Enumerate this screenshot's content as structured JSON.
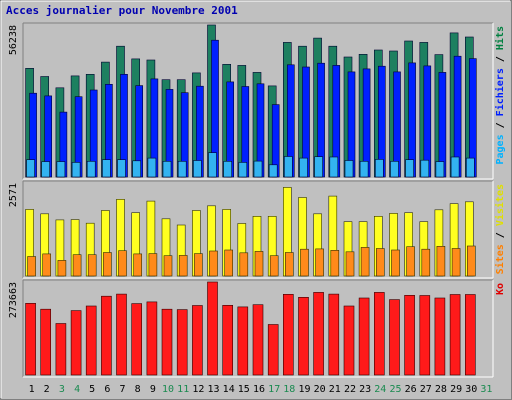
{
  "chart_data": {
    "type": "bar",
    "title": "Acces journalier pour Novembre 2001",
    "categories": [
      "1",
      "2",
      "3",
      "4",
      "5",
      "6",
      "7",
      "8",
      "9",
      "10",
      "11",
      "12",
      "13",
      "14",
      "15",
      "16",
      "17",
      "18",
      "19",
      "20",
      "21",
      "22",
      "23",
      "24",
      "25",
      "26",
      "27",
      "28",
      "29",
      "30",
      "31"
    ],
    "weekend_days": [
      "3",
      "4",
      "10",
      "11",
      "17",
      "18",
      "24",
      "25",
      "31"
    ],
    "panels": [
      {
        "id": "top",
        "ymax_label": "56238",
        "ymax": 56238,
        "right_label_parts": [
          {
            "text": "Pages",
            "color": "#00b2ff"
          },
          {
            "text": " / ",
            "color": "#000000"
          },
          {
            "text": "Fichiers",
            "color": "#0020ff"
          },
          {
            "text": " / ",
            "color": "#000000"
          },
          {
            "text": "Hits",
            "color": "#008040"
          }
        ],
        "series": [
          {
            "name": "Hits",
            "color": "#1d8060",
            "values": [
              40200,
              37200,
              33000,
              37400,
              38000,
              42500,
              48400,
              43700,
              43300,
              36000,
              36000,
              38500,
              56238,
              41700,
              41300,
              38700,
              33700,
              49800,
              48400,
              51400,
              48400,
              44400,
              45400,
              47000,
              46600,
              50300,
              49800,
              45300,
              53300,
              51800
            ]
          },
          {
            "name": "Fichiers",
            "color": "#0020ff",
            "values": [
              31000,
              30000,
              24000,
              29700,
              32200,
              34300,
              38000,
              33800,
              36300,
              32400,
              31200,
              33600,
              50600,
              35200,
              33500,
              34500,
              26800,
              41500,
              40700,
              42100,
              41300,
              38900,
              40000,
              41000,
              38900,
              42200,
              41100,
              38700,
              44700,
              43800
            ]
          },
          {
            "name": "Pages",
            "color": "#33b3f0",
            "values": [
              6400,
              5700,
              5700,
              5400,
              5800,
              6400,
              6400,
              6000,
              7000,
              5800,
              5800,
              6100,
              9000,
              5800,
              5400,
              5900,
              4500,
              7600,
              7000,
              7500,
              7400,
              6100,
              5800,
              6500,
              5800,
              6400,
              6200,
              5700,
              7400,
              7000
            ]
          }
        ]
      },
      {
        "id": "middle",
        "ymax_label": "2571",
        "ymax": 2571,
        "right_label_parts": [
          {
            "text": "Sites",
            "color": "#ff8000"
          },
          {
            "text": " / ",
            "color": "#000000"
          },
          {
            "text": "Visites",
            "color": "#e0e000"
          }
        ],
        "series": [
          {
            "name": "Visites",
            "color": "#ffff20",
            "values": [
              1840,
              1720,
              1550,
              1560,
              1460,
              1810,
              2120,
              1750,
              2070,
              1580,
              1410,
              1810,
              1940,
              1840,
              1450,
              1650,
              1650,
              2450,
              2170,
              1720,
              2210,
              1500,
              1500,
              1650,
              1730,
              1750,
              1500,
              1830,
              2000,
              2050
            ]
          },
          {
            "name": "Sites",
            "color": "#ff8a1a",
            "values": [
              540,
              610,
              430,
              590,
              590,
              650,
              700,
              610,
              620,
              560,
              570,
              620,
              690,
              720,
              640,
              680,
              560,
              650,
              740,
              750,
              710,
              670,
              790,
              760,
              720,
              810,
              740,
              820,
              760,
              830
            ]
          }
        ]
      },
      {
        "id": "bottom",
        "ymax_label": "273663",
        "ymax": 273663,
        "right_label_parts": [
          {
            "text": "Ko",
            "color": "#e00000"
          }
        ],
        "series": [
          {
            "name": "Ko",
            "color": "#ff1a1a",
            "values": [
              211000,
              193500,
              151500,
              189500,
              203000,
              232000,
              238000,
              210000,
              215000,
              193500,
              192500,
              204500,
              273663,
              205000,
              200500,
              207000,
              148500,
              237500,
              228500,
              243000,
              238000,
              203000,
              226500,
              243000,
              222000,
              234500,
              234000,
              226500,
              237000,
              237000
            ]
          }
        ]
      }
    ]
  }
}
